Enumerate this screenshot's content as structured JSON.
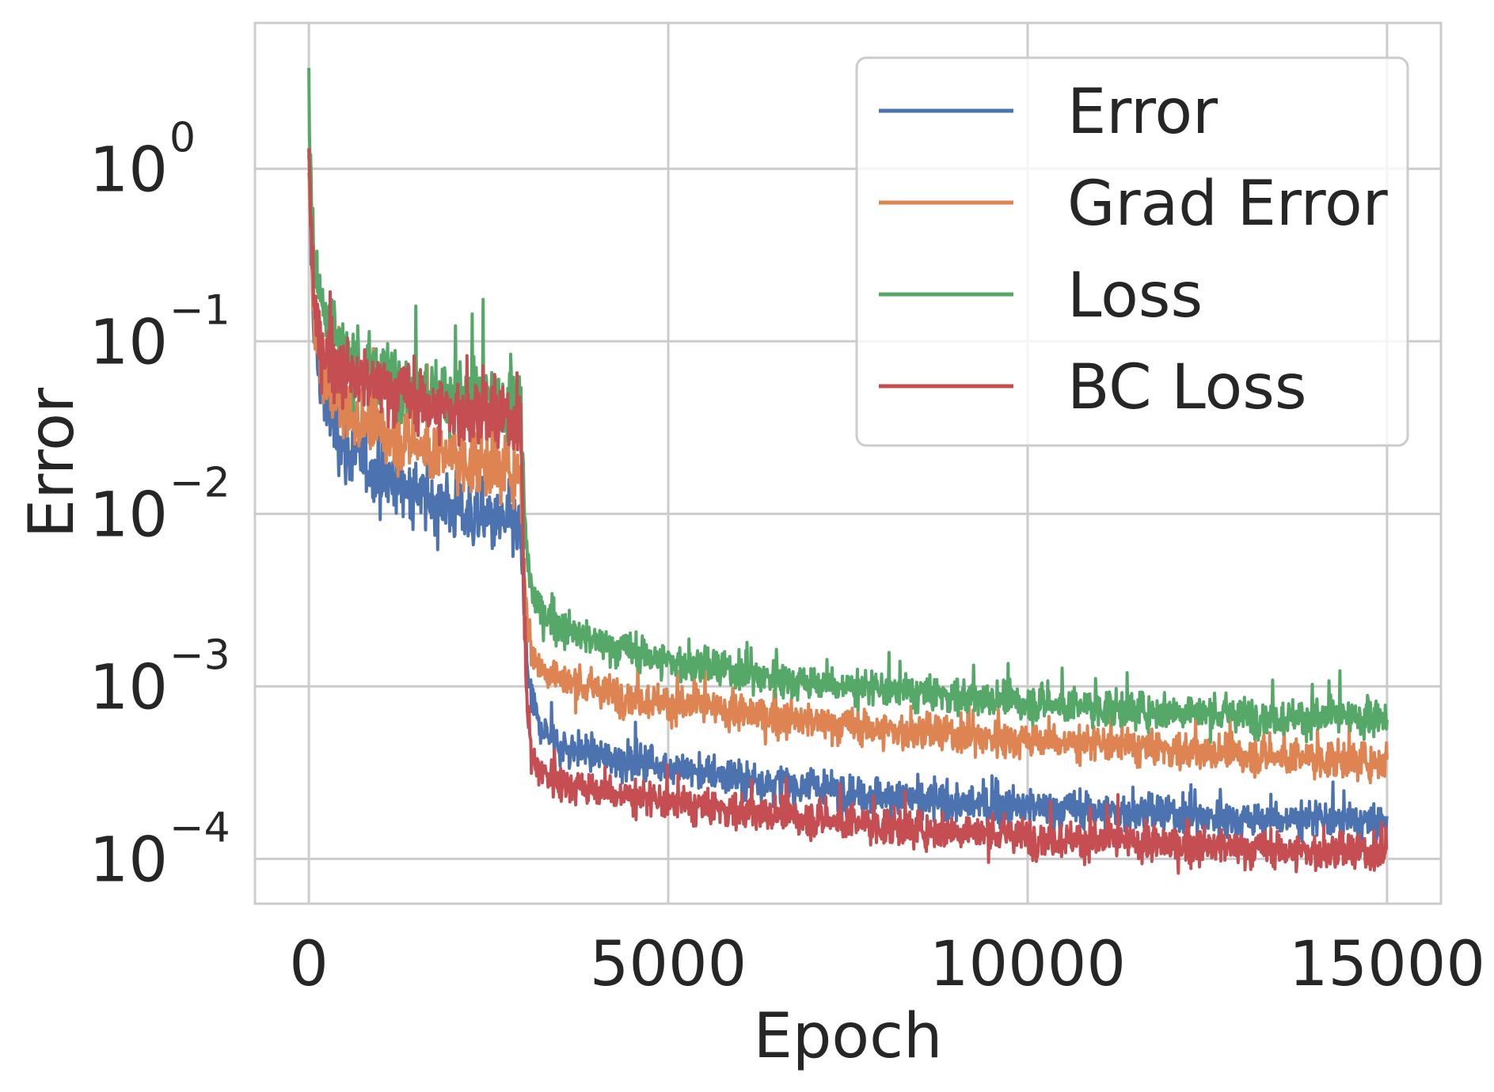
{
  "chart_data": {
    "type": "line",
    "title": "",
    "xlabel": "Epoch",
    "ylabel": "Error",
    "xlim": [
      -750,
      15750
    ],
    "ylim": [
      5.5e-05,
      7.0
    ],
    "yscale": "log",
    "grid": true,
    "legend_position": "top-right",
    "x_ticks": [
      0,
      5000,
      10000,
      15000
    ],
    "x_tick_labels": [
      "0",
      "5000",
      "10000",
      "15000"
    ],
    "y_ticks": [
      0.0001,
      0.001,
      0.01,
      0.1,
      1
    ],
    "y_tick_bases": [
      "10",
      "10",
      "10",
      "10",
      "10"
    ],
    "y_tick_exponents": [
      "−4",
      "−3",
      "−2",
      "−1",
      "0"
    ],
    "series": [
      {
        "name": "Error",
        "color": "#4c72b0",
        "points": [
          [
            0,
            0.9
          ],
          [
            50,
            0.2
          ],
          [
            100,
            0.08
          ],
          [
            200,
            0.05
          ],
          [
            300,
            0.035
          ],
          [
            400,
            0.03
          ],
          [
            500,
            0.024
          ],
          [
            700,
            0.02
          ],
          [
            1000,
            0.017
          ],
          [
            1300,
            0.015
          ],
          [
            1500,
            0.013
          ],
          [
            1700,
            0.012
          ],
          [
            2000,
            0.011
          ],
          [
            2300,
            0.0095
          ],
          [
            2600,
            0.009
          ],
          [
            2950,
            0.008
          ],
          [
            3000,
            0.0022
          ],
          [
            3050,
            0.0012
          ],
          [
            3100,
            0.0008
          ],
          [
            3200,
            0.0006
          ],
          [
            3500,
            0.00045
          ],
          [
            4000,
            0.0004
          ],
          [
            5000,
            0.00034
          ],
          [
            6000,
            0.00029
          ],
          [
            7000,
            0.00026
          ],
          [
            8000,
            0.00023
          ],
          [
            9000,
            0.00021
          ],
          [
            10000,
            0.0002
          ],
          [
            11000,
            0.00019
          ],
          [
            12000,
            0.00018
          ],
          [
            13000,
            0.00017
          ],
          [
            14000,
            0.00017
          ],
          [
            15000,
            0.00016
          ]
        ]
      },
      {
        "name": "Grad Error",
        "color": "#dd8452",
        "points": [
          [
            0,
            0.9
          ],
          [
            50,
            0.25
          ],
          [
            100,
            0.1
          ],
          [
            200,
            0.07
          ],
          [
            300,
            0.055
          ],
          [
            400,
            0.045
          ],
          [
            500,
            0.04
          ],
          [
            700,
            0.034
          ],
          [
            1000,
            0.03
          ],
          [
            1300,
            0.027
          ],
          [
            1500,
            0.025
          ],
          [
            1700,
            0.023
          ],
          [
            2000,
            0.021
          ],
          [
            2300,
            0.02
          ],
          [
            2600,
            0.019
          ],
          [
            2950,
            0.018
          ],
          [
            3000,
            0.004
          ],
          [
            3050,
            0.0022
          ],
          [
            3100,
            0.0016
          ],
          [
            3200,
            0.0013
          ],
          [
            3500,
            0.0011
          ],
          [
            4000,
            0.00095
          ],
          [
            5000,
            0.0008
          ],
          [
            6000,
            0.0007
          ],
          [
            7000,
            0.00062
          ],
          [
            8000,
            0.00056
          ],
          [
            9000,
            0.00052
          ],
          [
            10000,
            0.00049
          ],
          [
            11000,
            0.00046
          ],
          [
            12000,
            0.00043
          ],
          [
            13000,
            0.0004
          ],
          [
            14000,
            0.00038
          ],
          [
            15000,
            0.00037
          ]
        ]
      },
      {
        "name": "Loss",
        "color": "#55a868",
        "points": [
          [
            0,
            3.5
          ],
          [
            30,
            0.8
          ],
          [
            80,
            0.3
          ],
          [
            150,
            0.2
          ],
          [
            250,
            0.15
          ],
          [
            400,
            0.1
          ],
          [
            600,
            0.08
          ],
          [
            800,
            0.07
          ],
          [
            1000,
            0.065
          ],
          [
            1300,
            0.06
          ],
          [
            1500,
            0.055
          ],
          [
            1700,
            0.052
          ],
          [
            2000,
            0.05
          ],
          [
            2300,
            0.047
          ],
          [
            2600,
            0.045
          ],
          [
            2950,
            0.04
          ],
          [
            3000,
            0.01
          ],
          [
            3050,
            0.005
          ],
          [
            3100,
            0.0035
          ],
          [
            3200,
            0.0028
          ],
          [
            3500,
            0.0022
          ],
          [
            4000,
            0.0018
          ],
          [
            5000,
            0.0014
          ],
          [
            6000,
            0.0012
          ],
          [
            7000,
            0.00105
          ],
          [
            8000,
            0.00095
          ],
          [
            9000,
            0.00088
          ],
          [
            10000,
            0.0008
          ],
          [
            11000,
            0.00075
          ],
          [
            12000,
            0.00072
          ],
          [
            13000,
            0.00068
          ],
          [
            14000,
            0.00066
          ],
          [
            15000,
            0.00064
          ]
        ]
      },
      {
        "name": "BC Loss",
        "color": "#c44e52",
        "points": [
          [
            0,
            1.0
          ],
          [
            50,
            0.3
          ],
          [
            100,
            0.12
          ],
          [
            200,
            0.09
          ],
          [
            300,
            0.08
          ],
          [
            400,
            0.07
          ],
          [
            500,
            0.065
          ],
          [
            700,
            0.06
          ],
          [
            1000,
            0.055
          ],
          [
            1300,
            0.05
          ],
          [
            1500,
            0.045
          ],
          [
            1700,
            0.042
          ],
          [
            2000,
            0.04
          ],
          [
            2300,
            0.037
          ],
          [
            2600,
            0.035
          ],
          [
            2950,
            0.035
          ],
          [
            3000,
            0.002
          ],
          [
            3050,
            0.0006
          ],
          [
            3100,
            0.0004
          ],
          [
            3200,
            0.00033
          ],
          [
            3500,
            0.00028
          ],
          [
            4000,
            0.00025
          ],
          [
            5000,
            0.00021
          ],
          [
            6000,
            0.00019
          ],
          [
            7000,
            0.00017
          ],
          [
            8000,
            0.000155
          ],
          [
            9000,
            0.000145
          ],
          [
            10000,
            0.000135
          ],
          [
            11000,
            0.000127
          ],
          [
            12000,
            0.00012
          ],
          [
            13000,
            0.000115
          ],
          [
            14000,
            0.00011
          ],
          [
            15000,
            0.000107
          ]
        ]
      }
    ]
  }
}
